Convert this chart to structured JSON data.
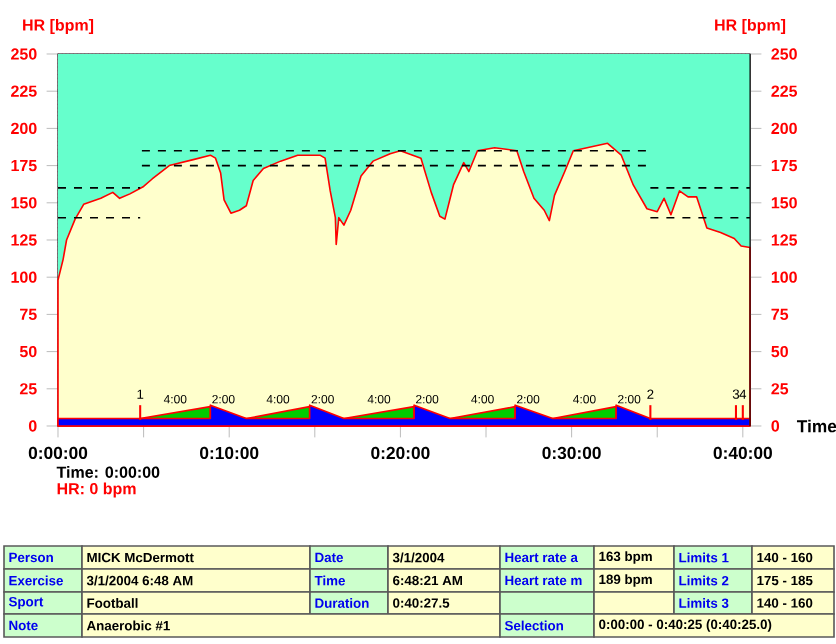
{
  "chart_data": {
    "type": "area",
    "ylabel": "HR [bpm]",
    "y2label": "HR [bpm]",
    "xlabel": "Time",
    "xlim": [
      0,
      40.42
    ],
    "ylim": [
      0,
      250
    ],
    "y2lim": [
      0,
      250
    ],
    "xticks": [
      {
        "value": 0,
        "label": "0:00:00"
      },
      {
        "value": 5,
        "label": null
      },
      {
        "value": 10,
        "label": "0:10:00"
      },
      {
        "value": 15,
        "label": null
      },
      {
        "value": 20,
        "label": "0:20:00"
      },
      {
        "value": 25,
        "label": null
      },
      {
        "value": 30,
        "label": "0:30:00"
      },
      {
        "value": 35,
        "label": null
      },
      {
        "value": 40,
        "label": "0:40:00"
      }
    ],
    "yticks": [
      0,
      25,
      50,
      75,
      100,
      125,
      150,
      175,
      200,
      225,
      250
    ],
    "y2ticks": [
      0,
      25,
      50,
      75,
      100,
      125,
      150,
      175,
      200,
      225,
      250
    ],
    "grid": true,
    "series": [
      {
        "color": "#ffffcc",
        "x": [
          0,
          0.3,
          0.5,
          1.0,
          1.5,
          2.5,
          3.2,
          3.6,
          4.2,
          5.0,
          5.5,
          6.5,
          7.9,
          8.9,
          9.2,
          9.5,
          9.7,
          10.1,
          10.6,
          11.0,
          11.4,
          12.0,
          13.0,
          14.0,
          15.3,
          15.6,
          15.9,
          16.2,
          16.25,
          16.4,
          16.7,
          17.1,
          17.7,
          18.4,
          19.4,
          20.0,
          21.2,
          21.8,
          22.3,
          22.6,
          23.1,
          23.7,
          24.0,
          24.5,
          25.5,
          26.8,
          27.2,
          27.8,
          28.4,
          28.7,
          29.0,
          29.6,
          30.1,
          31.3,
          32.1,
          32.9,
          33.6,
          34.4,
          35.0,
          35.4,
          35.8,
          36.3,
          36.8,
          37.3,
          37.9,
          38.7,
          39.5,
          39.9,
          40.42
        ],
        "values": [
          98,
          112,
          125,
          139,
          149,
          153,
          157,
          153,
          156,
          161,
          166,
          175,
          179,
          182,
          180,
          170,
          152,
          143,
          145,
          148,
          165,
          173,
          178,
          182,
          182,
          180,
          158,
          140,
          122,
          140,
          135,
          145,
          168,
          178,
          183,
          185,
          180,
          157,
          141,
          139,
          162,
          177,
          171,
          185,
          187,
          185,
          171,
          153,
          145,
          138,
          155,
          171,
          185,
          188,
          190,
          182,
          162,
          146,
          144,
          153,
          142,
          158,
          154,
          154,
          133,
          130,
          126,
          121,
          120
        ]
      },
      {
        "color": "#00cc00",
        "x": [
          4.8,
          8.9,
          8.9,
          11.0,
          14.7,
          14.7,
          16.7,
          20.8,
          20.8,
          22.9,
          26.7,
          26.7,
          28.9,
          32.6
        ],
        "values": [
          5,
          13,
          5,
          5,
          13,
          5,
          5,
          13,
          5,
          5,
          13,
          5,
          5,
          13
        ]
      },
      {
        "color": "#0000ff",
        "x": [
          0,
          4.8,
          8.9,
          8.9,
          11.0,
          14.7,
          14.7,
          16.7,
          20.8,
          20.8,
          22.9,
          26.7,
          26.7,
          28.9,
          32.6,
          32.6,
          34.6,
          40.42
        ],
        "values": [
          5,
          5,
          5,
          14,
          5,
          5,
          14,
          5,
          5,
          14,
          5,
          5,
          14,
          5,
          5,
          14,
          5,
          5
        ]
      },
      {
        "type": "line",
        "color": "#000000",
        "line_style": "dashed",
        "x": [
          0,
          4.8
        ],
        "values": [
          140,
          140
        ]
      },
      {
        "type": "line",
        "color": "#000000",
        "line_style": "dashed",
        "x": [
          0,
          4.8
        ],
        "values": [
          160,
          160
        ]
      },
      {
        "type": "line",
        "color": "#000000",
        "line_style": "dashed",
        "x": [
          4.9,
          34.6
        ],
        "values": [
          175,
          175
        ]
      },
      {
        "type": "line",
        "color": "#000000",
        "line_style": "dashed",
        "x": [
          4.9,
          34.6
        ],
        "values": [
          185,
          185
        ]
      },
      {
        "type": "line",
        "color": "#000000",
        "line_style": "dashed",
        "x": [
          34.6,
          40.42
        ],
        "values": [
          140,
          140
        ]
      },
      {
        "type": "line",
        "color": "#000000",
        "line_style": "dashed",
        "x": [
          34.6,
          40.42
        ],
        "values": [
          160,
          160
        ]
      },
      {
        "type": "bar",
        "color": "#ff0000",
        "x": [
          4.8,
          34.6,
          39.6,
          40.0
        ],
        "base": [
          4,
          4,
          4,
          4
        ],
        "values": [
          10,
          10,
          10,
          10
        ]
      }
    ],
    "bands": [
      {
        "axis": "y",
        "from": 98,
        "to": 250,
        "color": "#66ffcc"
      }
    ],
    "annotations": [
      "Time: 0:00:00",
      "HR: 0 bpm",
      "4:00",
      "2:00",
      "4:00",
      "2:00",
      "4:00",
      "2:00",
      "4:00",
      "2:00",
      "4:00",
      "2:00",
      "1",
      "2",
      "3",
      "4",
      "Person",
      "MICK McDermott",
      "Date",
      "3/1/2004",
      "Heart rate a",
      "163 bpm",
      "Limits 1",
      "140 - 160",
      "Exercise",
      "3/1/2004 6:48 AM",
      "Time",
      "6:48:21 AM",
      "Heart rate m",
      "189 bpm",
      "Limits 2",
      "175 - 185",
      "Sport",
      "Football",
      "Duration",
      "0:40:27.5",
      "Limits 3",
      "140 - 160",
      "Note",
      "Anaerobic #1",
      "Selection",
      "0:00:00 - 0:40:25 (0:40:25.0)"
    ]
  }
}
